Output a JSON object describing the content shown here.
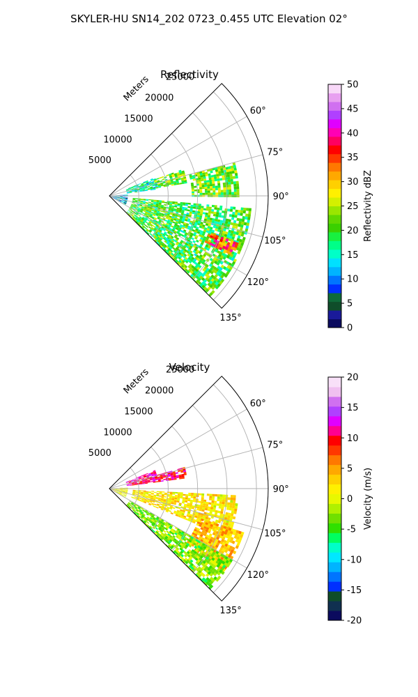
{
  "suptitle": "SKYLER-HU  SN14_202  0723_0.455 UTC Elevation 02°",
  "panels": [
    {
      "title": "Reflectivity",
      "range_label": "Meters",
      "range_ticks": [
        "5000",
        "10000",
        "15000",
        "20000",
        "25000"
      ],
      "azimuth_ticks": [
        "60°",
        "75°",
        "90°",
        "105°",
        "120°",
        "135°"
      ],
      "colorbar": {
        "label": "Reflectivity dBZ",
        "ticks": [
          "0",
          "5",
          "10",
          "15",
          "20",
          "25",
          "30",
          "35",
          "40",
          "45",
          "50"
        ],
        "min": 0,
        "max": 50,
        "colors": [
          "#0b0b5e",
          "#1a1a9a",
          "#0f4d2a",
          "#0e6b3a",
          "#0030ff",
          "#0075ff",
          "#00b4ff",
          "#00e0ff",
          "#00ffc8",
          "#00ff88",
          "#18f040",
          "#3ad000",
          "#60d800",
          "#9ae600",
          "#d4f000",
          "#fff000",
          "#ffd000",
          "#ffa800",
          "#ff7800",
          "#ff3800",
          "#ff0000",
          "#ff0060",
          "#ff00b4",
          "#e000ff",
          "#b040ff",
          "#d070f0",
          "#e8a0f0",
          "#f8d8f8"
        ]
      }
    },
    {
      "title": "Velocity",
      "range_label": "Meters",
      "range_ticks": [
        "5000",
        "10000",
        "15000",
        "20000",
        "25000"
      ],
      "azimuth_ticks": [
        "60°",
        "75°",
        "90°",
        "105°",
        "120°",
        "135°"
      ],
      "colorbar": {
        "label": "Velocity (m/s)",
        "ticks": [
          "-20",
          "-15",
          "-10",
          "-5",
          "0",
          "5",
          "10",
          "15",
          "20"
        ],
        "min": -20,
        "max": 20,
        "colors": [
          "#0b0b5e",
          "#103050",
          "#0f4d2a",
          "#0030ff",
          "#0075ff",
          "#00b4ff",
          "#00e8ff",
          "#00ffc8",
          "#00ff60",
          "#30e000",
          "#70e000",
          "#b0f000",
          "#e8f800",
          "#fff000",
          "#ffd000",
          "#ffa800",
          "#ff7800",
          "#ff3800",
          "#ff0000",
          "#ff0090",
          "#e000ff",
          "#b040ff",
          "#d070f0",
          "#f0c0f0",
          "#f8e0f8"
        ]
      }
    }
  ],
  "chart_data": [
    {
      "type": "heatmap",
      "projection": "polar sector",
      "title": "Reflectivity",
      "range_axis": {
        "label": "Meters",
        "min": 0,
        "max": 27000,
        "ticks": [
          5000,
          10000,
          15000,
          20000,
          25000
        ]
      },
      "azimuth_axis": {
        "min_deg": 45,
        "max_deg": 135,
        "ticks_deg": [
          60,
          75,
          90,
          105,
          120,
          135
        ],
        "zero": "north",
        "direction": "clockwise"
      },
      "value_label": "Reflectivity dBZ",
      "value_range": [
        0,
        50
      ],
      "grid": true,
      "echo_regions": [
        {
          "az_deg": [
            68,
            82
          ],
          "range_m": [
            3000,
            8000
          ],
          "dbz": 16
        },
        {
          "az_deg": [
            70,
            80
          ],
          "range_m": [
            8000,
            13000
          ],
          "dbz": 22
        },
        {
          "az_deg": [
            95,
            140
          ],
          "range_m": [
            4000,
            24000
          ],
          "dbz": 20
        },
        {
          "az_deg": [
            75,
            90
          ],
          "range_m": [
            14000,
            22000
          ],
          "dbz": 22
        },
        {
          "az_deg": [
            110,
            116
          ],
          "range_m": [
            18000,
            23000
          ],
          "dbz": 35
        },
        {
          "az_deg": [
            86,
            120
          ],
          "range_m": [
            0,
            3000
          ],
          "dbz": 10
        }
      ]
    },
    {
      "type": "heatmap",
      "projection": "polar sector",
      "title": "Velocity",
      "range_axis": {
        "label": "Meters",
        "min": 0,
        "max": 27000,
        "ticks": [
          5000,
          10000,
          15000,
          20000,
          25000
        ]
      },
      "azimuth_axis": {
        "min_deg": 45,
        "max_deg": 135,
        "ticks_deg": [
          60,
          75,
          90,
          105,
          120,
          135
        ],
        "zero": "north",
        "direction": "clockwise"
      },
      "value_label": "Velocity (m/s)",
      "value_range": [
        -20,
        20
      ],
      "grid": true,
      "echo_regions": [
        {
          "az_deg": [
            68,
            76
          ],
          "range_m": [
            3000,
            8000
          ],
          "velocity_ms": 12
        },
        {
          "az_deg": [
            74,
            82
          ],
          "range_m": [
            3000,
            13000
          ],
          "velocity_ms": 10
        },
        {
          "az_deg": [
            93,
            112
          ],
          "range_m": [
            4000,
            22000
          ],
          "velocity_ms": 2
        },
        {
          "az_deg": [
            108,
            125
          ],
          "range_m": [
            16000,
            24000
          ],
          "velocity_ms": 4
        },
        {
          "az_deg": [
            120,
            140
          ],
          "range_m": [
            4000,
            24000
          ],
          "velocity_ms": -3
        },
        {
          "az_deg": [
            86,
            120
          ],
          "range_m": [
            0,
            3000
          ],
          "velocity_ms": 1
        }
      ]
    }
  ]
}
